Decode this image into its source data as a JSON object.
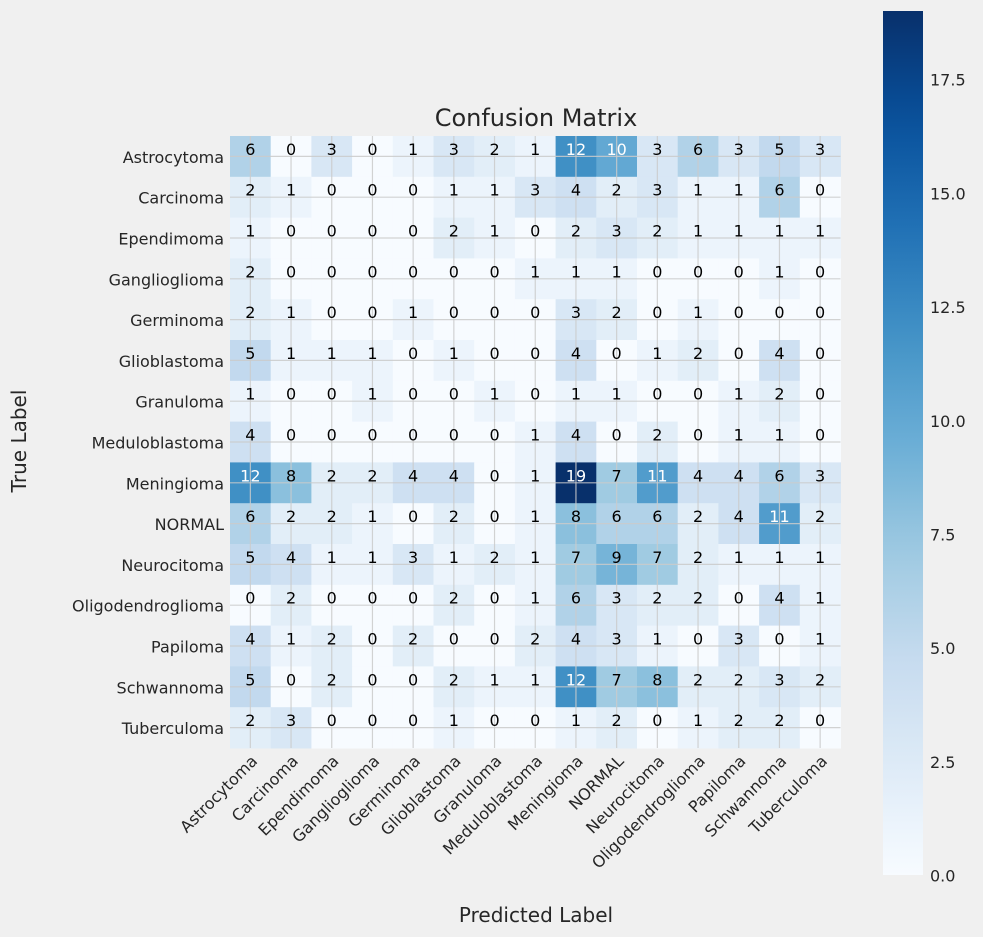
{
  "chart_data": {
    "type": "heatmap",
    "title": "Confusion Matrix",
    "xlabel": "Predicted Label",
    "ylabel": "True Label",
    "labels": [
      "Astrocytoma",
      "Carcinoma",
      "Ependimoma",
      "Ganglioglioma",
      "Germinoma",
      "Glioblastoma",
      "Granuloma",
      "Meduloblastoma",
      "Meningioma",
      "NORMAL",
      "Neurocitoma",
      "Oligodendroglioma",
      "Papiloma",
      "Schwannoma",
      "Tuberculoma"
    ],
    "matrix": [
      [
        6,
        0,
        3,
        0,
        1,
        3,
        2,
        1,
        12,
        10,
        3,
        6,
        3,
        5,
        3
      ],
      [
        2,
        1,
        0,
        0,
        0,
        1,
        1,
        3,
        4,
        2,
        3,
        1,
        1,
        6,
        0
      ],
      [
        1,
        0,
        0,
        0,
        0,
        2,
        1,
        0,
        2,
        3,
        2,
        1,
        1,
        1,
        1
      ],
      [
        2,
        0,
        0,
        0,
        0,
        0,
        0,
        1,
        1,
        1,
        0,
        0,
        0,
        1,
        0
      ],
      [
        2,
        1,
        0,
        0,
        1,
        0,
        0,
        0,
        3,
        2,
        0,
        1,
        0,
        0,
        0
      ],
      [
        5,
        1,
        1,
        1,
        0,
        1,
        0,
        0,
        4,
        0,
        1,
        2,
        0,
        4,
        0
      ],
      [
        1,
        0,
        0,
        1,
        0,
        0,
        1,
        0,
        1,
        1,
        0,
        0,
        1,
        2,
        0
      ],
      [
        4,
        0,
        0,
        0,
        0,
        0,
        0,
        1,
        4,
        0,
        2,
        0,
        1,
        1,
        0
      ],
      [
        12,
        8,
        2,
        2,
        4,
        4,
        0,
        1,
        19,
        7,
        11,
        4,
        4,
        6,
        3
      ],
      [
        6,
        2,
        2,
        1,
        0,
        2,
        0,
        1,
        8,
        6,
        6,
        2,
        4,
        11,
        2
      ],
      [
        5,
        4,
        1,
        1,
        3,
        1,
        2,
        1,
        7,
        9,
        7,
        2,
        1,
        1,
        1
      ],
      [
        0,
        2,
        0,
        0,
        0,
        2,
        0,
        1,
        6,
        3,
        2,
        2,
        0,
        4,
        1
      ],
      [
        4,
        1,
        2,
        0,
        2,
        0,
        0,
        2,
        4,
        3,
        1,
        0,
        3,
        0,
        1
      ],
      [
        5,
        0,
        2,
        0,
        0,
        2,
        1,
        1,
        12,
        7,
        8,
        2,
        2,
        3,
        2
      ],
      [
        2,
        3,
        0,
        0,
        0,
        1,
        0,
        0,
        1,
        2,
        0,
        1,
        2,
        2,
        0
      ]
    ],
    "colormap": "Blues",
    "vmin": 0,
    "vmax": 19,
    "colorbar_ticks": [
      "0.0",
      "2.5",
      "5.0",
      "7.5",
      "10.0",
      "12.5",
      "15.0",
      "17.5"
    ],
    "colorbar_tick_values": [
      0,
      2.5,
      5,
      7.5,
      10,
      12.5,
      15,
      17.5
    ],
    "grid": true,
    "colors": {
      "background": "#f0f0f0",
      "text_dark": "#000000",
      "text_light": "#ffffff",
      "grid": "#cbcbcb"
    }
  }
}
